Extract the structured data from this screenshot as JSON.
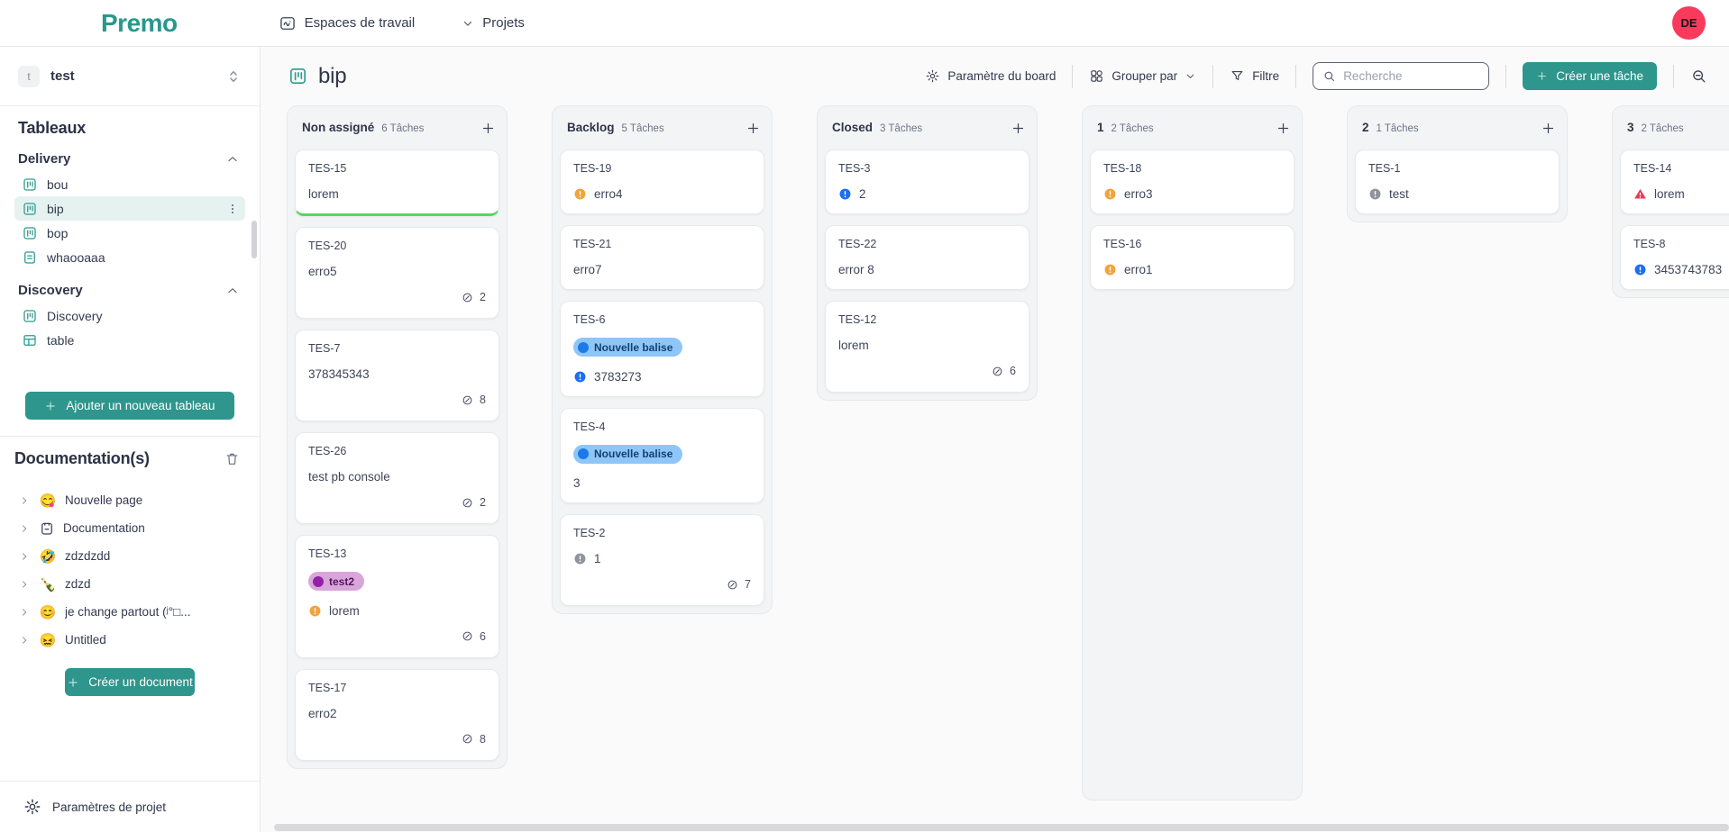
{
  "topbar": {
    "logo": "Premo",
    "workspaces_label": "Espaces de travail",
    "projects_label": "Projets",
    "avatar": {
      "initials": "DE",
      "bg": "#f83b5d"
    }
  },
  "sidebar": {
    "project_selector": {
      "initial": "t",
      "name": "test"
    },
    "boards_heading": "Tableaux",
    "groups": [
      {
        "label": "Delivery",
        "items": [
          {
            "label": "bou",
            "icon": "kanban",
            "selected": false
          },
          {
            "label": "bip",
            "icon": "kanban",
            "selected": true,
            "menu": true
          },
          {
            "label": "bop",
            "icon": "kanban",
            "selected": false
          },
          {
            "label": "whaooaaa",
            "icon": "document",
            "selected": false
          }
        ]
      },
      {
        "label": "Discovery",
        "items": [
          {
            "label": "Discovery",
            "icon": "kanban",
            "selected": false
          },
          {
            "label": "table",
            "icon": "table",
            "selected": false
          }
        ]
      }
    ],
    "add_board_label": "Ajouter un nouveau tableau",
    "docs_heading": "Documentation(s)",
    "docs": [
      {
        "icon_type": "emoji",
        "icon": "😋",
        "label": "Nouvelle page"
      },
      {
        "icon_type": "svg",
        "icon": "note",
        "label": "Documentation"
      },
      {
        "icon_type": "emoji",
        "icon": "🤣",
        "label": "zdzdzdd"
      },
      {
        "icon_type": "emoji",
        "icon": "🍾",
        "label": "zdzd"
      },
      {
        "icon_type": "emoji",
        "icon": "😊",
        "label": "je change partout (ʲ°□..."
      },
      {
        "icon_type": "emoji",
        "icon": "😖",
        "label": "Untitled"
      }
    ],
    "create_doc_label": "Créer un document",
    "settings_label": "Paramètres de projet"
  },
  "board": {
    "title": "bip",
    "toolbar": {
      "board_settings": "Paramètre du board",
      "group_by": "Grouper par",
      "filter": "Filtre",
      "search_placeholder": "Recherche",
      "create_task": "Créer une tâche"
    },
    "columns": [
      {
        "name": "Non assigné",
        "count_label": "6 Tâches",
        "tall": false,
        "cards": [
          {
            "id": "TES-15",
            "title": "lorem",
            "priority": null,
            "badge": null,
            "links": null,
            "accent_bottom": true
          },
          {
            "id": "TES-20",
            "title": "erro5",
            "priority": null,
            "badge": null,
            "links": 2
          },
          {
            "id": "TES-7",
            "title": "378345343",
            "priority": null,
            "badge": null,
            "links": 8
          },
          {
            "id": "TES-26",
            "title": "test pb console",
            "priority": null,
            "badge": null,
            "links": 2
          },
          {
            "id": "TES-13",
            "title": "lorem",
            "priority": "orange",
            "badge": {
              "label": "test2",
              "style": "purple"
            },
            "links": 6
          },
          {
            "id": "TES-17",
            "title": "erro2",
            "priority": null,
            "badge": null,
            "links": 8
          }
        ]
      },
      {
        "name": "Backlog",
        "count_label": "5 Tâches",
        "tall": false,
        "cards": [
          {
            "id": "TES-19",
            "title": "erro4",
            "priority": "orange",
            "badge": null,
            "links": null
          },
          {
            "id": "TES-21",
            "title": "erro7",
            "priority": null,
            "badge": null,
            "links": null
          },
          {
            "id": "TES-6",
            "title": "3783273",
            "priority": "blue",
            "badge": {
              "label": "Nouvelle balise",
              "style": "blue"
            },
            "links": null
          },
          {
            "id": "TES-4",
            "title": "3",
            "priority": null,
            "badge": {
              "label": "Nouvelle balise",
              "style": "blue"
            },
            "links": null
          },
          {
            "id": "TES-2",
            "title": "1",
            "priority": "gray",
            "badge": null,
            "links": 7
          }
        ]
      },
      {
        "name": "Closed",
        "count_label": "3 Tâches",
        "tall": false,
        "cards": [
          {
            "id": "TES-3",
            "title": "2",
            "priority": "blue",
            "badge": null,
            "links": null
          },
          {
            "id": "TES-22",
            "title": "error 8",
            "priority": null,
            "badge": null,
            "links": null
          },
          {
            "id": "TES-12",
            "title": "lorem",
            "priority": null,
            "badge": null,
            "links": 6
          }
        ]
      },
      {
        "name": "1",
        "count_label": "2 Tâches",
        "tall": true,
        "cards": [
          {
            "id": "TES-18",
            "title": "erro3",
            "priority": "orange",
            "badge": null,
            "links": null
          },
          {
            "id": "TES-16",
            "title": "erro1",
            "priority": "orange",
            "badge": null,
            "links": null
          }
        ]
      },
      {
        "name": "2",
        "count_label": "1 Tâches",
        "tall": false,
        "cards": [
          {
            "id": "TES-1",
            "title": "test",
            "priority": "gray",
            "badge": null,
            "links": null
          }
        ]
      },
      {
        "name": "3",
        "count_label": "2 Tâches",
        "tall": false,
        "cards": [
          {
            "id": "TES-14",
            "title": "lorem",
            "priority": "red",
            "badge": null,
            "links": null
          },
          {
            "id": "TES-8",
            "title": "3453743783",
            "priority": "blue",
            "badge": null,
            "links": null
          }
        ]
      }
    ]
  },
  "colors": {
    "brand": "#2e968c",
    "logo": "#27998c",
    "accent_green": "#58d55f",
    "priority": {
      "orange": "#f2a33c",
      "blue": "#1c6ef2",
      "gray": "#8f939c",
      "red": "#e83a55"
    },
    "badge_styles": {
      "purple": {
        "bg": "#d9a6da",
        "dot": "#9222a5",
        "text": "#55185d"
      },
      "blue": {
        "bg": "#8ec6f9",
        "dot": "#1d79e8",
        "text": "#16406e"
      }
    }
  }
}
